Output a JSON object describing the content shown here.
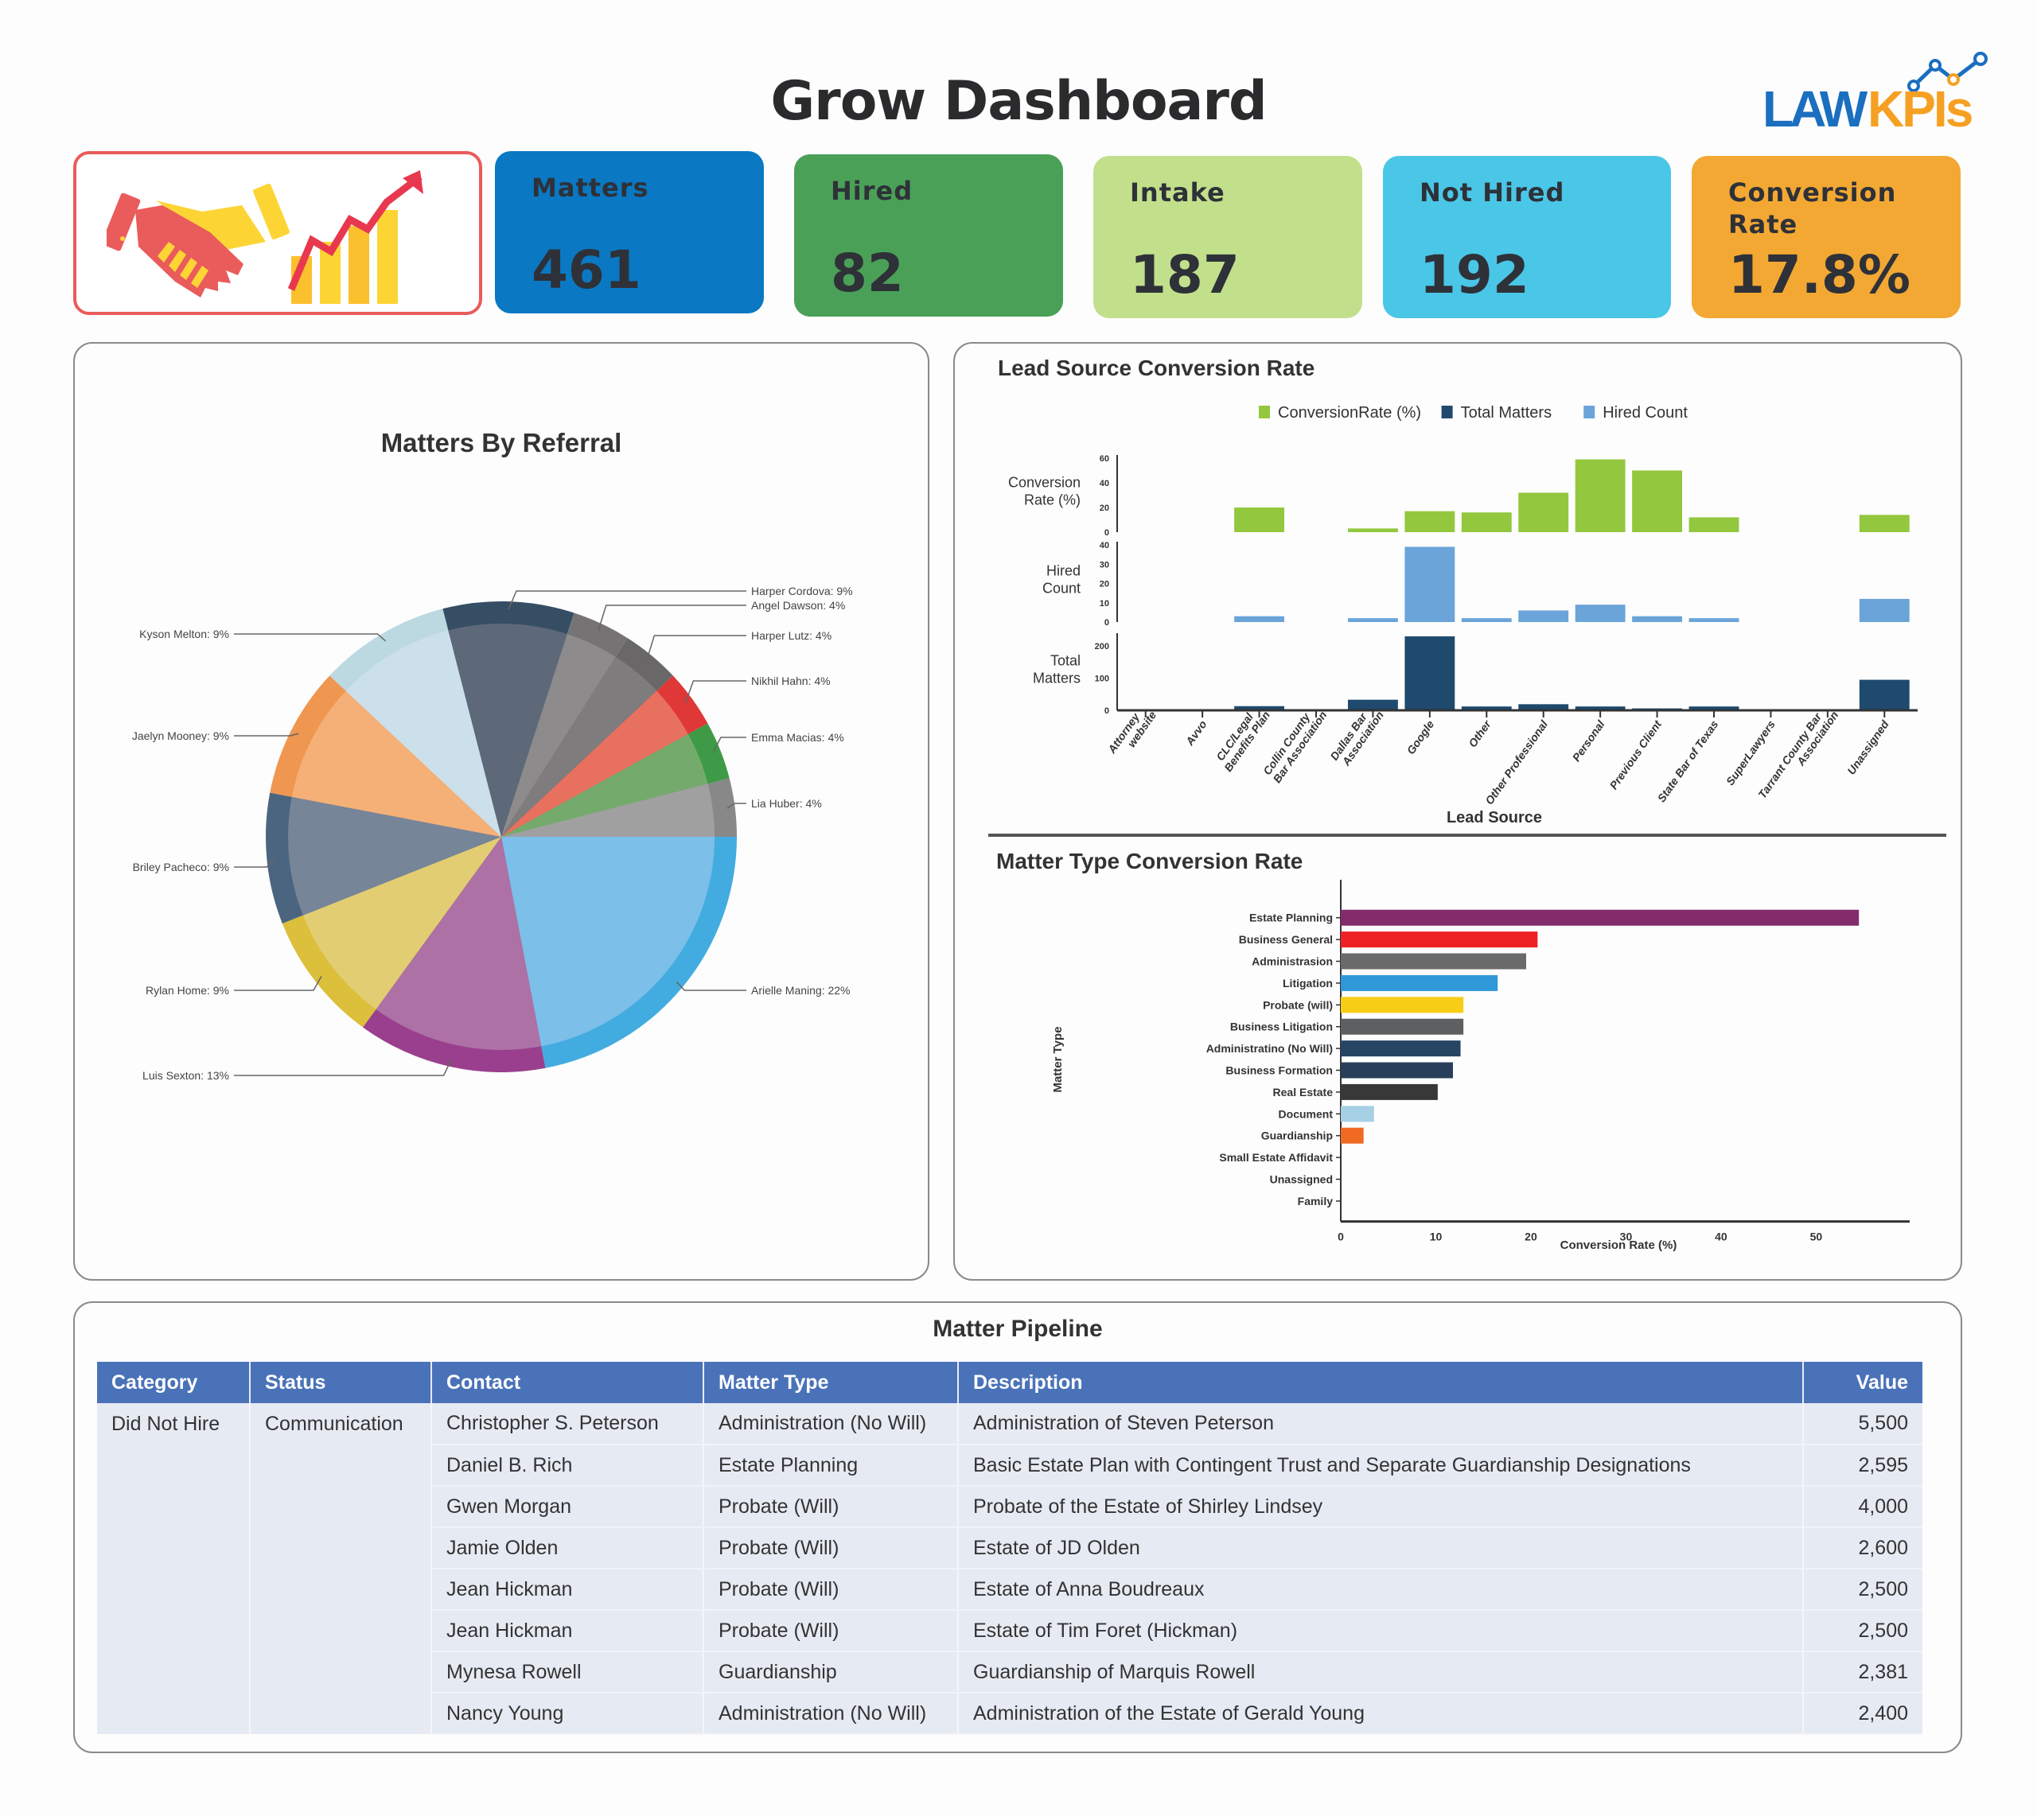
{
  "header": {
    "title": "Grow Dashboard",
    "logo": {
      "part1": "LAW",
      "part2": "KPIs",
      "colors": {
        "primary": "#1a6fbf",
        "accent": "#f5a023"
      }
    },
    "hero_icons": [
      "handshake-icon",
      "growth-chart-icon"
    ]
  },
  "kpis": [
    {
      "label": "Matters",
      "value": "461",
      "color": "#0a78c3"
    },
    {
      "label": "Hired",
      "value": "82",
      "color": "#4aa057"
    },
    {
      "label": "Intake",
      "value": "187",
      "color": "#c2df8b"
    },
    {
      "label": "Not Hired",
      "value": "192",
      "color": "#4ac6e7"
    },
    {
      "label": "Conversion Rate",
      "value": "17.8%",
      "color": "#f3a833"
    }
  ],
  "chart_data": [
    {
      "type": "pie",
      "title": "Matters By Referral",
      "labels": [
        "Arielle Maning",
        "Luis Sexton",
        "Rylan Home",
        "Briley Pacheco",
        "Jaelyn Mooney",
        "Kyson Melton",
        "Harper Cordova",
        "Angel Dawson",
        "Harper Lutz",
        "Nikhil Hahn",
        "Emma Macias",
        "Lia Huber"
      ],
      "values": [
        22,
        13,
        9,
        9,
        9,
        9,
        9,
        4,
        4,
        4,
        4,
        4
      ],
      "label_format": "{name}: {value}%",
      "colors": [
        "#7cbfe9",
        "#ad71a6",
        "#e2cd73",
        "#778599",
        "#f4b077",
        "#cbe0ea",
        "#5d6878",
        "#8e8b8c",
        "#7f7c7d",
        "#e8705f",
        "#74ab6d",
        "#a1a0a0"
      ],
      "rim_colors": [
        "#42ace0",
        "#9a3f8e",
        "#dcbf3a",
        "#4b6580",
        "#ef9650",
        "#bcd8e1",
        "#364e64",
        "#757374",
        "#696768",
        "#e03737",
        "#3e9a47",
        "#888888"
      ],
      "legend": "outside-labels"
    },
    {
      "type": "bar",
      "title": "Lead Source Conversion Rate",
      "legend": {
        "position": "top-center",
        "items": [
          {
            "name": "ConversionRate (%)",
            "color": "#93c73d"
          },
          {
            "name": "Total Matters",
            "color": "#1f4a6e"
          },
          {
            "name": "Hired Count",
            "color": "#6aa4d9"
          }
        ]
      },
      "xlabel": "Lead Source",
      "categories": [
        "Attorney website",
        "Avvo",
        "CLC/Legal Benefits Plan",
        "Collin County Bar Association",
        "Dallas Bar Association",
        "Google",
        "Other",
        "Other Professional",
        "Personal",
        "Previous Client",
        "State Bar of Texas",
        "SuperLawyers",
        "Tarrant County Bar Association",
        "Unassigned"
      ],
      "category_lines": [
        [
          "Attorney",
          "website"
        ],
        [
          "Avvo"
        ],
        [
          "CLC/Legal",
          "Benefits Plan"
        ],
        [
          "Collin County",
          "Bar Association"
        ],
        [
          "Dallas Bar",
          "Association"
        ],
        [
          "Google"
        ],
        [
          "Other"
        ],
        [
          "Other Professional"
        ],
        [
          "Personal"
        ],
        [
          "Previous Client"
        ],
        [
          "State Bar of Texas"
        ],
        [
          "SuperLawyers"
        ],
        [
          "Tarrant County Bar",
          "Association"
        ],
        [
          "Unassigned"
        ]
      ],
      "series": [
        {
          "name": "ConversionRate (%)",
          "ylabel": [
            "Conversion",
            "Rate (%)"
          ],
          "ylim": [
            0,
            60
          ],
          "ticks": [
            0,
            20,
            40,
            60
          ],
          "color": "#93c73d",
          "values": [
            0,
            0,
            20,
            0,
            3,
            17,
            16,
            32,
            59,
            50,
            12,
            0,
            0,
            14
          ]
        },
        {
          "name": "Hired Count",
          "ylabel": [
            "Hired",
            "Count"
          ],
          "ylim": [
            0,
            40
          ],
          "ticks": [
            0,
            10,
            20,
            30,
            40
          ],
          "color": "#6aa4d9",
          "values": [
            0,
            0,
            3,
            0,
            2,
            39,
            2,
            6,
            9,
            3,
            2,
            0,
            0,
            12
          ]
        },
        {
          "name": "Total Matters",
          "ylabel": [
            "Total",
            "Matters"
          ],
          "ylim": [
            0,
            230
          ],
          "ticks": [
            0,
            100,
            200
          ],
          "color": "#1f4a6e",
          "values": [
            0,
            0,
            13,
            0,
            33,
            230,
            12,
            19,
            12,
            6,
            12,
            0,
            0,
            95
          ]
        }
      ]
    },
    {
      "type": "bar",
      "orientation": "horizontal",
      "title": "Matter Type Conversion Rate",
      "xlabel": "Conversion Rate (%)",
      "ylabel": "Matter Type",
      "xlim": [
        0,
        58
      ],
      "ticks": [
        0,
        10,
        20,
        30,
        40,
        50
      ],
      "categories": [
        "Estate Planning",
        "Business General",
        "Administrasion",
        "Litigation",
        "Probate (will)",
        "Business Litigation",
        "Administratino (No Will)",
        "Business Formation",
        "Real Estate",
        "Document",
        "Guardianship",
        "Small Estate Affidavit",
        "Unassigned",
        "Family"
      ],
      "values": [
        54.5,
        20.7,
        19.5,
        16.5,
        12.9,
        12.9,
        12.6,
        11.8,
        10.2,
        3.5,
        2.4,
        0,
        0,
        0
      ],
      "colors": [
        "#842b6c",
        "#ee2225",
        "#6a6a6a",
        "#2e98d8",
        "#f8cd16",
        "#5e5f60",
        "#254563",
        "#293e5a",
        "#383838",
        "#a6d0e6",
        "#f06a24",
        "#999999",
        "#999999",
        "#999999"
      ]
    }
  ],
  "pipeline": {
    "title": "Matter Pipeline",
    "columns": [
      "Category",
      "Status",
      "Contact",
      "Matter Type",
      "Description",
      "Value"
    ],
    "group": {
      "category": "Did Not Hire",
      "status": "Communication"
    },
    "rows": [
      {
        "contact": "Christopher S. Peterson",
        "matter_type": "Administration (No Will)",
        "description": "Administration of Steven Peterson",
        "value": "5,500"
      },
      {
        "contact": "Daniel B. Rich",
        "matter_type": "Estate Planning",
        "description": "Basic Estate Plan with Contingent Trust and Separate Guardianship Designations",
        "value": "2,595"
      },
      {
        "contact": "Gwen Morgan",
        "matter_type": "Probate (Will)",
        "description": "Probate of the Estate of Shirley Lindsey",
        "value": "4,000"
      },
      {
        "contact": "Jamie Olden",
        "matter_type": "Probate (Will)",
        "description": "Estate of JD Olden",
        "value": "2,600"
      },
      {
        "contact": "Jean Hickman",
        "matter_type": "Probate (Will)",
        "description": "Estate of Anna Boudreaux",
        "value": "2,500"
      },
      {
        "contact": "Jean Hickman",
        "matter_type": "Probate (Will)",
        "description": "Estate of Tim Foret (Hickman)",
        "value": "2,500"
      },
      {
        "contact": "Mynesa Rowell",
        "matter_type": "Guardianship",
        "description": "Guardianship of Marquis Rowell",
        "value": "2,381"
      },
      {
        "contact": "Nancy Young",
        "matter_type": "Administration (No Will)",
        "description": "Administration of the Estate of Gerald Young",
        "value": "2,400"
      }
    ]
  }
}
